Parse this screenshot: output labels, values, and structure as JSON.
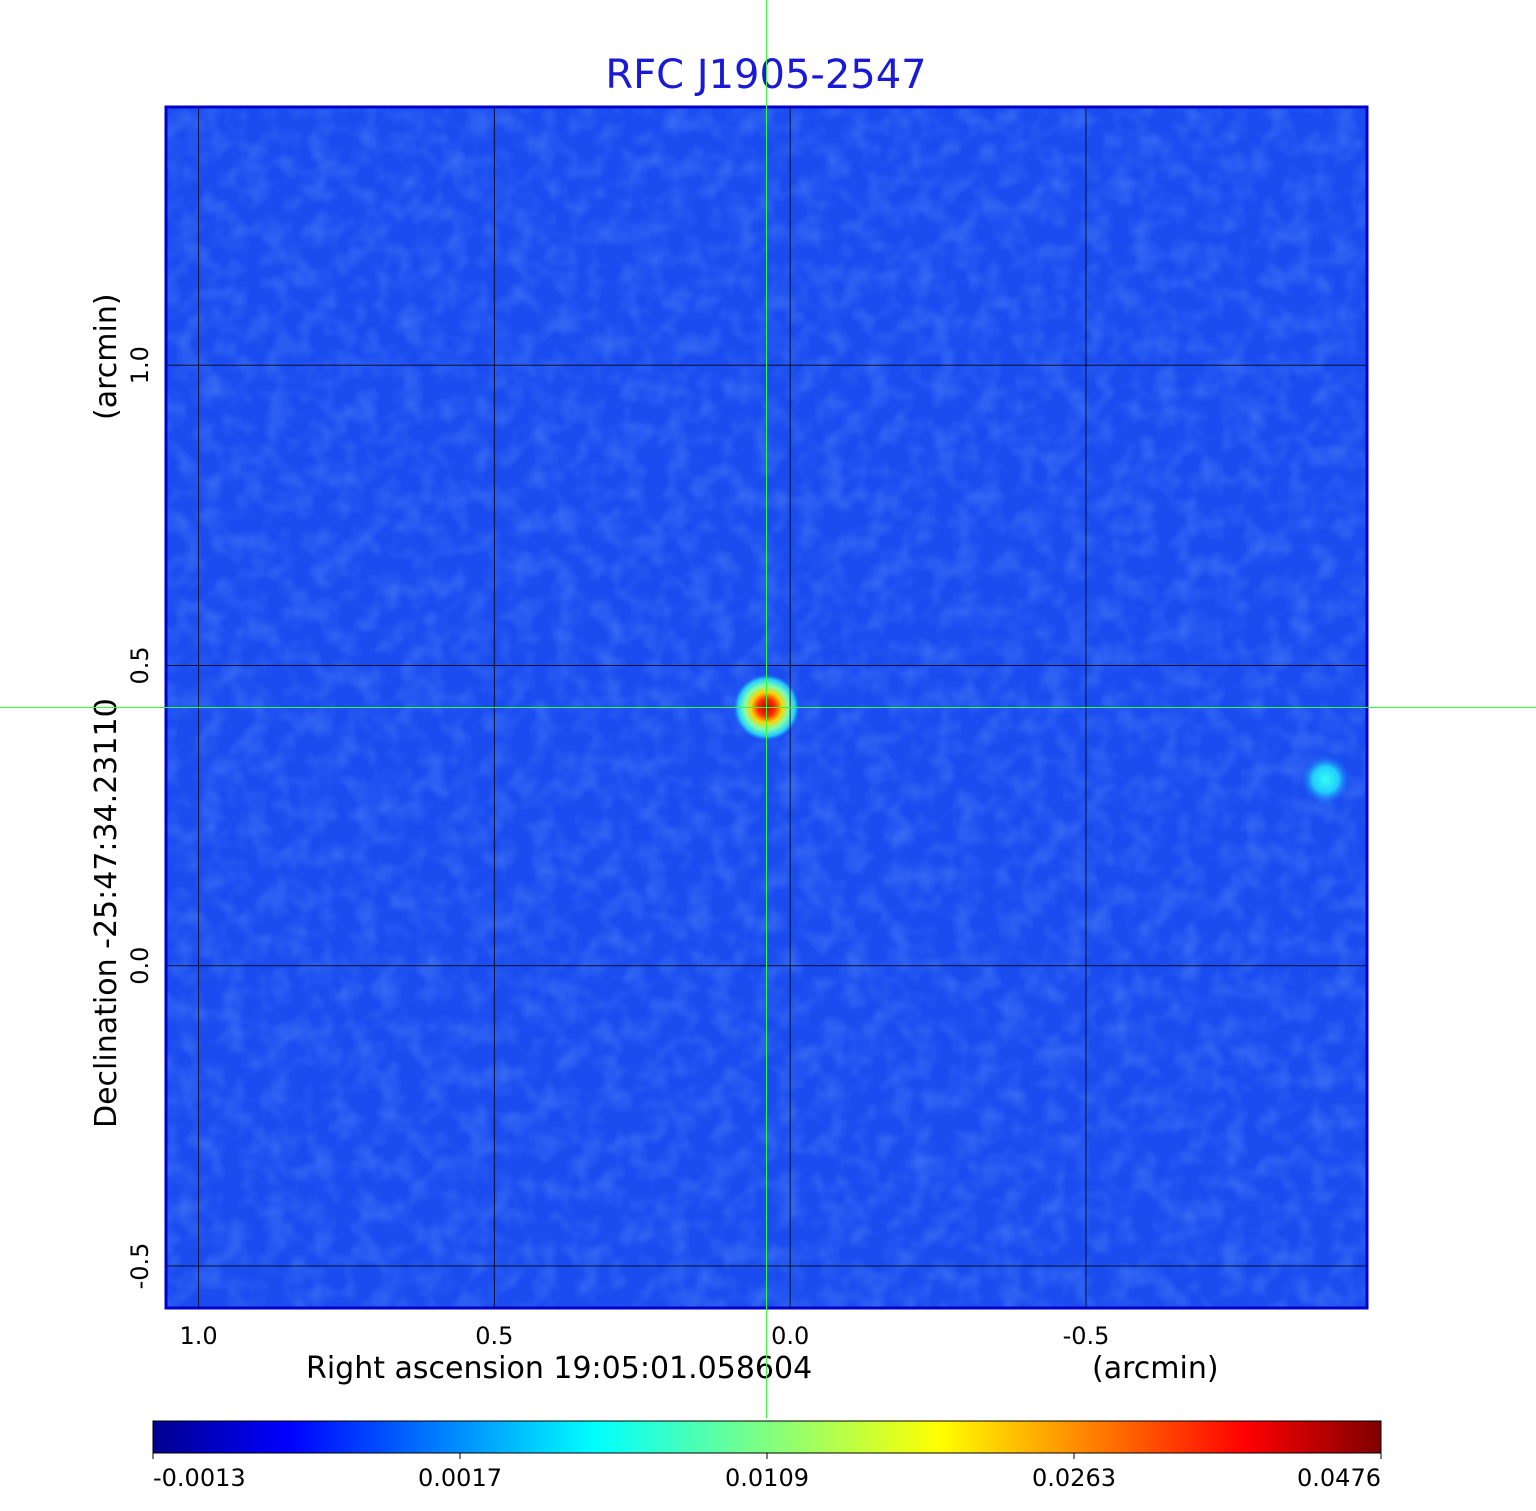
{
  "chart_data": {
    "type": "heatmap",
    "title": "RFC J1905-2547",
    "xlabel_left": "Right ascension  19:05:01.058604",
    "xlabel_right": "(arcmin)",
    "ylabel_main": "Declination  -25:47:34.23110",
    "ylabel_units": "(arcmin)",
    "x_ticks": [
      {
        "value": 1.0,
        "label": "1.0"
      },
      {
        "value": 0.5,
        "label": "0.5"
      },
      {
        "value": 0.0,
        "label": "0.0"
      },
      {
        "value": -0.5,
        "label": "-0.5"
      }
    ],
    "y_ticks": [
      {
        "value": 1.0,
        "label": "1.0"
      },
      {
        "value": 0.5,
        "label": "0.5"
      },
      {
        "value": 0.0,
        "label": "0.0"
      },
      {
        "value": -0.5,
        "label": "-0.5"
      }
    ],
    "xlim": [
      1.055,
      -0.975
    ],
    "ylim": [
      -0.57,
      1.43
    ],
    "grid": true,
    "crosshair": {
      "x": 0.04,
      "y": 0.43,
      "color": "#33ff33"
    },
    "colormap": "jet",
    "colorbar_ticks": [
      "-0.0013",
      "0.0017",
      "0.0109",
      "0.0263",
      "0.0476"
    ],
    "sources": [
      {
        "x": 0.04,
        "y": 0.43,
        "peak": 0.0476
      },
      {
        "x": -0.905,
        "y": 0.31,
        "peak": 0.006
      }
    ],
    "colors": {
      "title": "#1a1ad6",
      "background_map": "#1a4cf0",
      "frame": "#0000cc"
    }
  }
}
